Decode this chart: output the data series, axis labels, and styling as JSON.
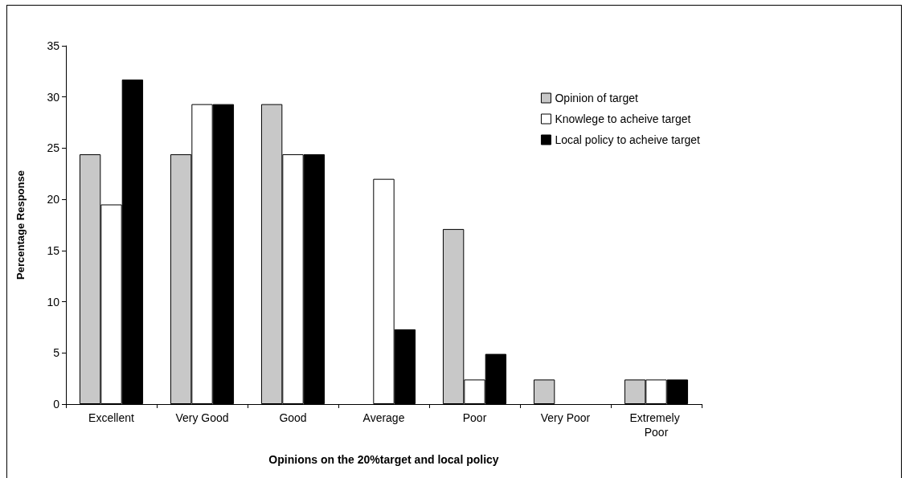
{
  "chart_data": {
    "type": "bar",
    "xlabel": "Opinions on the 20%target and local policy",
    "ylabel": "Percentage Response",
    "categories": [
      "Excellent",
      "Very Good",
      "Good",
      "Average",
      "Poor",
      "Very Poor",
      "Extremely Poor"
    ],
    "series": [
      {
        "name": "Opinion of target",
        "color": "#c8c8c8",
        "values": [
          24.4,
          24.4,
          29.3,
          null,
          17.1,
          2.4,
          2.4
        ]
      },
      {
        "name": "Knowlege to acheive target",
        "color": "#ffffff",
        "values": [
          19.5,
          29.3,
          24.4,
          22.0,
          2.4,
          null,
          2.4
        ]
      },
      {
        "name": "Local policy to acheive target",
        "color": "#000000",
        "values": [
          31.7,
          29.3,
          24.4,
          7.3,
          4.9,
          null,
          2.4
        ]
      }
    ],
    "ylim": [
      0,
      35
    ],
    "yticks": [
      0,
      5,
      10,
      15,
      20,
      25,
      30,
      35
    ],
    "grid": false,
    "legend": "top right"
  }
}
